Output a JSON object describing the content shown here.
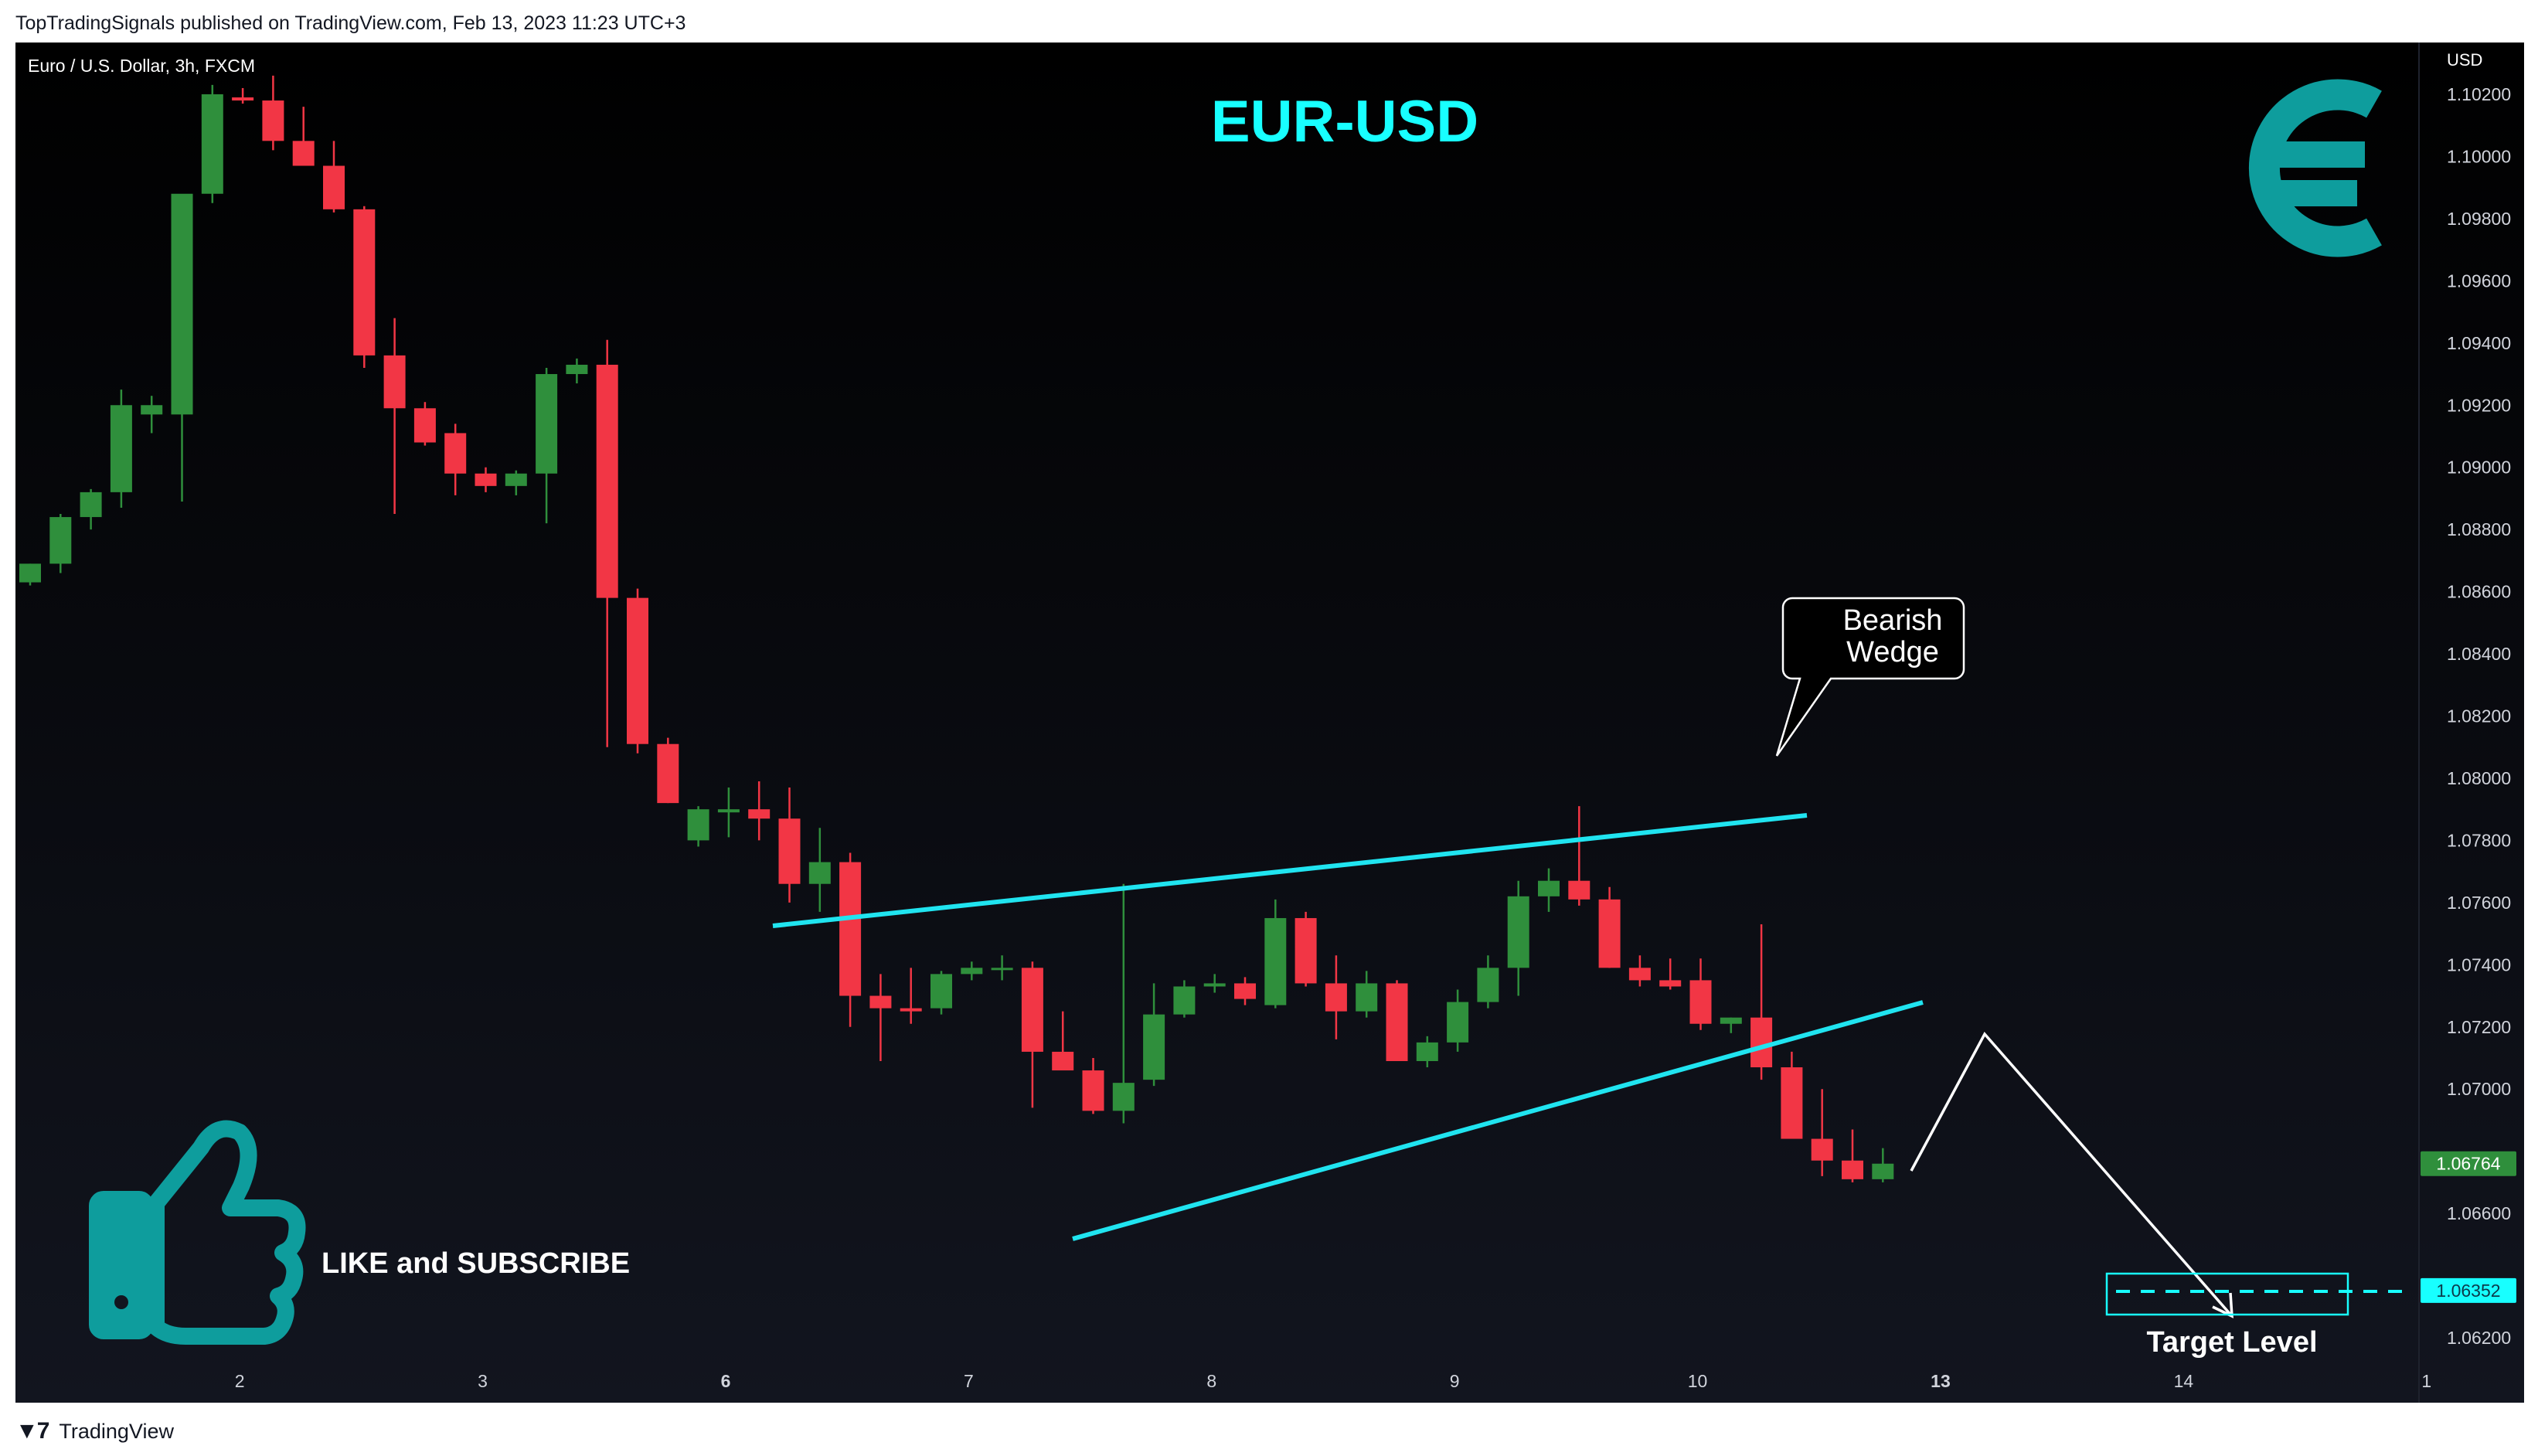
{
  "header": {
    "published": "TopTradingSignals published on TradingView.com, Feb 13, 2023 11:23 UTC+3"
  },
  "footer": {
    "brand": "TradingView",
    "logo_icon": "tradingview-logo-icon"
  },
  "chart_data": {
    "type": "candlestick",
    "symbol_label": "Euro / U.S. Dollar, 3h, FXCM",
    "title": "EUR-USD",
    "currency": "USD",
    "ylim": [
      1.0615,
      1.1026
    ],
    "y_ticks": [
      "1.10200",
      "1.10000",
      "1.09800",
      "1.09600",
      "1.09400",
      "1.09200",
      "1.09000",
      "1.08800",
      "1.08600",
      "1.08400",
      "1.08200",
      "1.08000",
      "1.07800",
      "1.07600",
      "1.07400",
      "1.07200",
      "1.07000",
      "1.06600",
      "1.06200"
    ],
    "x_ticks": [
      {
        "label": "2",
        "bold": false,
        "index": 6.9
      },
      {
        "label": "3",
        "bold": false,
        "index": 14.9
      },
      {
        "label": "6",
        "bold": true,
        "index": 22.9
      },
      {
        "label": "7",
        "bold": false,
        "index": 30.9
      },
      {
        "label": "8",
        "bold": false,
        "index": 38.9
      },
      {
        "label": "9",
        "bold": false,
        "index": 46.9
      },
      {
        "label": "10",
        "bold": false,
        "index": 54.9
      },
      {
        "label": "13",
        "bold": true,
        "index": 62.9
      },
      {
        "label": "14",
        "bold": false,
        "index": 70.9
      },
      {
        "label": "1",
        "bold": false,
        "index": 78.9
      }
    ],
    "candles": [
      [
        1.0863,
        1.0869,
        1.0862,
        1.0869
      ],
      [
        1.0869,
        1.0885,
        1.0866,
        1.0884
      ],
      [
        1.0884,
        1.0893,
        1.088,
        1.0892
      ],
      [
        1.0892,
        1.0925,
        1.0887,
        1.092
      ],
      [
        1.0917,
        1.0923,
        1.0911,
        1.092
      ],
      [
        1.0917,
        1.0985,
        1.0889,
        1.0988
      ],
      [
        1.0988,
        1.1023,
        1.0985,
        1.102
      ],
      [
        1.1019,
        1.1022,
        1.1017,
        1.1018
      ],
      [
        1.1018,
        1.1026,
        1.1002,
        1.1005
      ],
      [
        1.1005,
        1.1016,
        1.0998,
        1.0997
      ],
      [
        1.0997,
        1.1005,
        1.0982,
        1.0983
      ],
      [
        1.0983,
        1.0984,
        1.0932,
        1.0936
      ],
      [
        1.0936,
        1.0948,
        1.0885,
        1.0919
      ],
      [
        1.0919,
        1.0921,
        1.0907,
        1.0908
      ],
      [
        1.0911,
        1.0914,
        1.0891,
        1.0898
      ],
      [
        1.0898,
        1.09,
        1.0892,
        1.0894
      ],
      [
        1.0894,
        1.0899,
        1.0891,
        1.0898
      ],
      [
        1.0898,
        1.0932,
        1.0882,
        1.093
      ],
      [
        1.093,
        1.0935,
        1.0927,
        1.0933
      ],
      [
        1.0933,
        1.0941,
        1.081,
        1.0858
      ],
      [
        1.0858,
        1.0861,
        1.0808,
        1.0811
      ],
      [
        1.0811,
        1.0813,
        1.0792,
        1.0792
      ],
      [
        1.078,
        1.0791,
        1.0778,
        1.079
      ],
      [
        1.0789,
        1.0797,
        1.0781,
        1.079
      ],
      [
        1.079,
        1.0799,
        1.078,
        1.0787
      ],
      [
        1.0787,
        1.0797,
        1.076,
        1.0766
      ],
      [
        1.0766,
        1.0784,
        1.0757,
        1.0773
      ],
      [
        1.0773,
        1.0776,
        1.072,
        1.073
      ],
      [
        1.073,
        1.0737,
        1.0709,
        1.0726
      ],
      [
        1.0726,
        1.0739,
        1.0721,
        1.0725
      ],
      [
        1.0726,
        1.0738,
        1.0724,
        1.0737
      ],
      [
        1.0737,
        1.0741,
        1.0735,
        1.0739
      ],
      [
        1.0739,
        1.0743,
        1.0735,
        1.0739
      ],
      [
        1.0739,
        1.0741,
        1.0694,
        1.0712
      ],
      [
        1.0712,
        1.0725,
        1.0707,
        1.0706
      ],
      [
        1.0706,
        1.071,
        1.0692,
        1.0693
      ],
      [
        1.0693,
        1.0766,
        1.0689,
        1.0702
      ],
      [
        1.0703,
        1.0734,
        1.0701,
        1.0724
      ],
      [
        1.0724,
        1.0735,
        1.0723,
        1.0733
      ],
      [
        1.0733,
        1.0737,
        1.0731,
        1.0734
      ],
      [
        1.0734,
        1.0736,
        1.0727,
        1.0729
      ],
      [
        1.0727,
        1.0761,
        1.0726,
        1.0755
      ],
      [
        1.0755,
        1.0757,
        1.0733,
        1.0734
      ],
      [
        1.0734,
        1.0743,
        1.0716,
        1.0725
      ],
      [
        1.0725,
        1.0738,
        1.0723,
        1.0734
      ],
      [
        1.0734,
        1.0735,
        1.0709,
        1.0709
      ],
      [
        1.0709,
        1.0717,
        1.0707,
        1.0715
      ],
      [
        1.0715,
        1.0732,
        1.0712,
        1.0728
      ],
      [
        1.0728,
        1.0743,
        1.0726,
        1.0739
      ],
      [
        1.0739,
        1.0767,
        1.073,
        1.0762
      ],
      [
        1.0762,
        1.0771,
        1.0757,
        1.0767
      ],
      [
        1.0767,
        1.0791,
        1.0759,
        1.0761
      ],
      [
        1.0761,
        1.0765,
        1.0739,
        1.0739
      ],
      [
        1.0739,
        1.0743,
        1.0733,
        1.0735
      ],
      [
        1.0735,
        1.0742,
        1.0732,
        1.0733
      ],
      [
        1.0735,
        1.0742,
        1.0719,
        1.0721
      ],
      [
        1.0721,
        1.0723,
        1.0718,
        1.0723
      ],
      [
        1.0723,
        1.0753,
        1.0703,
        1.0707
      ],
      [
        1.0707,
        1.0712,
        1.0684,
        1.0684
      ],
      [
        1.0684,
        1.07,
        1.0672,
        1.0677
      ],
      [
        1.0677,
        1.0687,
        1.067,
        1.0671
      ],
      [
        1.0671,
        1.0681,
        1.067,
        1.0676
      ]
    ],
    "price_labels": [
      {
        "value": "1.06764",
        "color": "#2f8f3c",
        "text_color": "#ffffff"
      },
      {
        "value": "1.06352",
        "color": "#18ffff",
        "text_color": "#0b3a4a"
      }
    ],
    "colors": {
      "up": "#2f8f3c",
      "down": "#f23645",
      "line": "#20e4f0",
      "title": "#18ffff",
      "icon": "#0e9d9d",
      "arrow": "#ffffff"
    },
    "annotations": {
      "pattern_label_line1": "Bearish",
      "pattern_label_line2": "Wedge",
      "target_label": "Target Level",
      "cta": "LIKE and SUBSCRIBE",
      "currency_icon": "euro-icon",
      "thumb_icon": "thumbs-up-icon"
    }
  }
}
